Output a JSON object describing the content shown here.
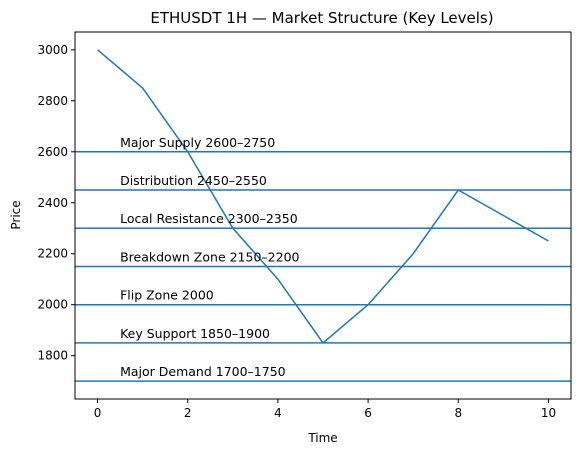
{
  "chart_data": {
    "type": "line",
    "title": "ETHUSDT 1H — Market Structure (Key Levels)",
    "xlabel": "Time",
    "ylabel": "Price",
    "xlim": [
      -0.5,
      10.5
    ],
    "ylim": [
      1630,
      3070
    ],
    "x_ticks": [
      0,
      2,
      4,
      6,
      8,
      10
    ],
    "y_ticks": [
      1800,
      2000,
      2200,
      2400,
      2600,
      2800,
      3000
    ],
    "grid": false,
    "series": [
      {
        "x": [
          0,
          1,
          2,
          3,
          4,
          5,
          6,
          7,
          8,
          9,
          10
        ],
        "values": [
          3000,
          2850,
          2600,
          2300,
          2100,
          1850,
          2000,
          2200,
          2450,
          2350,
          2250
        ],
        "color": "#1f77b4"
      }
    ],
    "levels": [
      {
        "price": 2600,
        "label": "Major Supply 2600–2750"
      },
      {
        "price": 2450,
        "label": "Distribution 2450–2550"
      },
      {
        "price": 2300,
        "label": "Local Resistance 2300–2350"
      },
      {
        "price": 2150,
        "label": "Breakdown Zone 2150–2200"
      },
      {
        "price": 2000,
        "label": "Flip Zone 2000"
      },
      {
        "price": 1850,
        "label": "Key Support 1850–1900"
      },
      {
        "price": 1700,
        "label": "Major Demand 1700–1750"
      }
    ],
    "level_label_x": 0.5,
    "level_color": "#1f77b4"
  }
}
